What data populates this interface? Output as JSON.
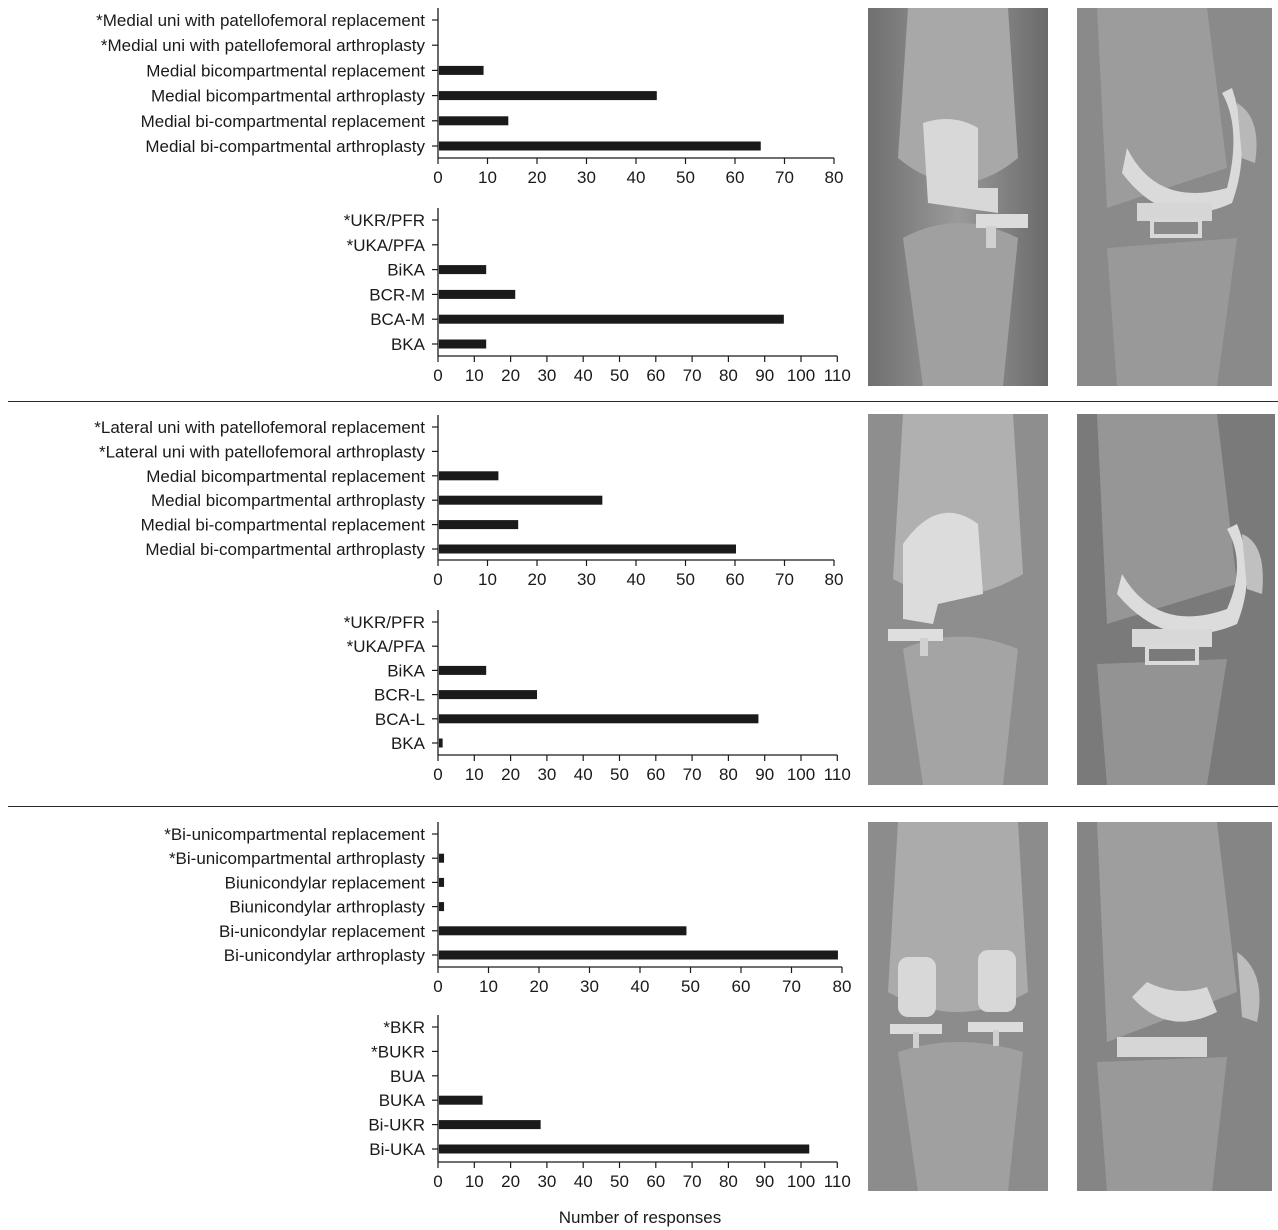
{
  "xlabel": "Number of responses",
  "colors": {
    "bar": "#1a1a1a",
    "axis": "#1a1a1a",
    "xray_bg": "#808080"
  },
  "xray_images": [
    {
      "name": "medial-ap-xray",
      "view": "AP",
      "implant": "medial-bicompartmental"
    },
    {
      "name": "medial-lateral-xray",
      "view": "lateral",
      "implant": "medial-bicompartmental"
    },
    {
      "name": "lateral-ap-xray",
      "view": "AP",
      "implant": "lateral-bicompartmental"
    },
    {
      "name": "lateral-lateral-xray",
      "view": "lateral",
      "implant": "lateral-bicompartmental"
    },
    {
      "name": "biuni-ap-xray",
      "view": "AP",
      "implant": "bi-unicondylar"
    },
    {
      "name": "biuni-lateral-xray",
      "view": "lateral",
      "implant": "bi-unicondylar"
    }
  ],
  "chart_data": [
    {
      "type": "bar",
      "orientation": "horizontal",
      "categories": [
        "*Medial uni with patellofemoral replacement",
        "*Medial uni with patellofemoral arthroplasty",
        "Medial bicompartmental replacement",
        "Medial bicompartmental arthroplasty",
        "Medial bi-compartmental replacement",
        "Medial bi-compartmental arthroplasty"
      ],
      "values": [
        0,
        0,
        9,
        44,
        14,
        65
      ],
      "xlim": [
        0,
        80
      ],
      "xticks": [
        0,
        10,
        20,
        30,
        40,
        50,
        60,
        70,
        80
      ]
    },
    {
      "type": "bar",
      "orientation": "horizontal",
      "categories": [
        "*UKR/PFR",
        "*UKA/PFA",
        "BiKA",
        "BCR-M",
        "BCA-M",
        "BKA"
      ],
      "values": [
        0,
        0,
        13,
        21,
        95,
        13
      ],
      "xlim": [
        0,
        110
      ],
      "xticks": [
        0,
        10,
        20,
        30,
        40,
        50,
        60,
        70,
        80,
        90,
        100,
        110
      ]
    },
    {
      "type": "bar",
      "orientation": "horizontal",
      "categories": [
        "*Lateral uni with patellofemoral replacement",
        "*Lateral uni with patellofemoral arthroplasty",
        "Medial bicompartmental replacement",
        "Medial bicompartmental arthroplasty",
        "Medial bi-compartmental replacement",
        "Medial bi-compartmental arthroplasty"
      ],
      "values": [
        0,
        0,
        12,
        33,
        16,
        60
      ],
      "xlim": [
        0,
        80
      ],
      "xticks": [
        0,
        10,
        20,
        30,
        40,
        50,
        60,
        70,
        80
      ]
    },
    {
      "type": "bar",
      "orientation": "horizontal",
      "categories": [
        "*UKR/PFR",
        "*UKA/PFA",
        "BiKA",
        "BCR-L",
        "BCA-L",
        "BKA"
      ],
      "values": [
        0,
        0,
        13,
        27,
        88,
        1
      ],
      "xlim": [
        0,
        110
      ],
      "xticks": [
        0,
        10,
        20,
        30,
        40,
        50,
        60,
        70,
        80,
        90,
        100,
        110
      ]
    },
    {
      "type": "bar",
      "orientation": "horizontal",
      "categories": [
        "*Bi-unicompartmental replacement",
        "*Bi-unicompartmental arthroplasty",
        "Biunicondylar replacement",
        "Biunicondylar arthroplasty",
        "Bi-unicondylar replacement",
        "Bi-unicondylar arthroplasty"
      ],
      "values": [
        0,
        1,
        1,
        1,
        49,
        79
      ],
      "xlim": [
        0,
        80
      ],
      "xticks": [
        0,
        10,
        20,
        30,
        40,
        50,
        60,
        70,
        80
      ]
    },
    {
      "type": "bar",
      "orientation": "horizontal",
      "categories": [
        "*BKR",
        "*BUKR",
        "BUA",
        "BUKA",
        "Bi-UKR",
        "Bi-UKA"
      ],
      "values": [
        0,
        0,
        0,
        12,
        28,
        102
      ],
      "xlim": [
        0,
        110
      ],
      "xticks": [
        0,
        10,
        20,
        30,
        40,
        50,
        60,
        70,
        80,
        90,
        100,
        110
      ]
    }
  ]
}
